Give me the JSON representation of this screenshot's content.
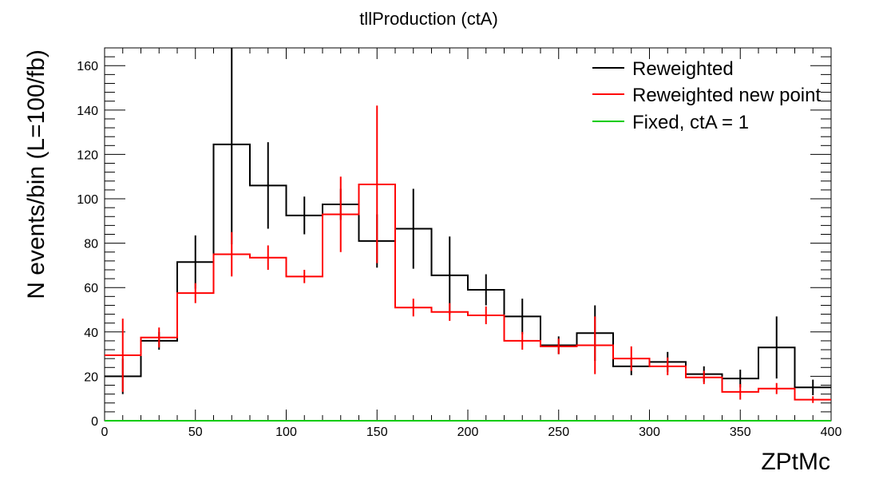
{
  "chart_data": {
    "type": "histogram",
    "title": "tllProduction (ctA)",
    "xlabel": "ZPtMc",
    "ylabel": "N events/bin (L=100/fb)",
    "xlim": [
      0,
      400
    ],
    "ylim": [
      0,
      168
    ],
    "bin_edges": [
      0,
      20,
      40,
      60,
      80,
      100,
      120,
      140,
      160,
      180,
      200,
      220,
      240,
      260,
      280,
      300,
      320,
      340,
      360,
      380,
      400
    ],
    "x_ticks": [
      0,
      50,
      100,
      150,
      200,
      250,
      300,
      350,
      400
    ],
    "y_ticks": [
      0,
      20,
      40,
      60,
      80,
      100,
      120,
      140,
      160
    ],
    "grid": false,
    "legend_position": "top-right",
    "series": [
      {
        "name": "Reweighted",
        "color": "#000000",
        "values": [
          20,
          36,
          71.5,
          124.5,
          106,
          92.5,
          97.5,
          81,
          86.5,
          65.5,
          59,
          47,
          34,
          39.5,
          24.5,
          26.5,
          21,
          19,
          33,
          15
        ],
        "errors": [
          8,
          4,
          12,
          45,
          19.5,
          8.5,
          7,
          12,
          18,
          17.5,
          7,
          8,
          4,
          12.5,
          4,
          4.5,
          3.5,
          4,
          14,
          3.5
        ]
      },
      {
        "name": "Reweighted new point",
        "color": "#ff0000",
        "values": [
          29.5,
          37.5,
          57.5,
          75,
          73.5,
          65,
          93,
          106.5,
          51,
          49,
          47.5,
          36,
          33.5,
          34,
          28,
          24.5,
          19.5,
          13,
          14.5,
          9.5
        ],
        "errors": [
          16.5,
          4.5,
          4.5,
          10,
          5.5,
          3,
          17,
          35.5,
          4,
          4,
          4,
          4,
          3.5,
          13,
          5.5,
          4,
          3,
          3.5,
          2.5,
          1.5
        ]
      },
      {
        "name": "Fixed, ctA = 1",
        "color": "#00cc00",
        "values": [
          0,
          0,
          0,
          0,
          0,
          0,
          0,
          0,
          0,
          0,
          0,
          0,
          0,
          0,
          0,
          0,
          0,
          0,
          0,
          0
        ],
        "errors": [
          0,
          0,
          0,
          0,
          0,
          0,
          0,
          0,
          0,
          0,
          0,
          0,
          0,
          0,
          0,
          0,
          0,
          0,
          0,
          0
        ]
      }
    ]
  }
}
